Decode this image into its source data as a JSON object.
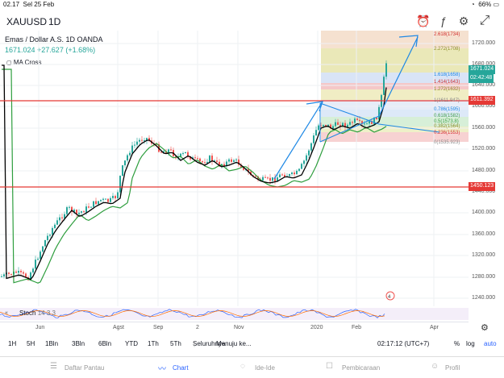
{
  "status": {
    "time": "02.17",
    "date": "Sel 25 Feb",
    "battery": "66%"
  },
  "topbar": {
    "symbol": "XAUUSD",
    "interval": "1D"
  },
  "legend": {
    "title": "Emas / Dollar A.S.   1D   OANDA",
    "price_change": "1671.024  +27.627 (+1.68%)",
    "indicator": "MA Cross"
  },
  "price_axis": {
    "ticks": [
      "1720.000",
      "1680.000",
      "1640.000",
      "1600.000",
      "1560.000",
      "1520.000",
      "1480.000",
      "1440.000",
      "1400.000",
      "1360.000",
      "1320.000",
      "1280.000",
      "1240.000"
    ],
    "current_price": "1671.024",
    "countdown": "02:42:48",
    "upper_line": "1611.392",
    "lower_line": "1450.123"
  },
  "fib_levels": [
    {
      "label": "2.618(1734)",
      "color": "#d32f2f"
    },
    {
      "label": "2.272(1708)",
      "color": "#8d8d2a"
    },
    {
      "label": "1.618(1658)",
      "color": "#1e88e5"
    },
    {
      "label": "1.414(1643)",
      "color": "#d32f2f"
    },
    {
      "label": "1.272(1632)",
      "color": "#8d8d2a"
    },
    {
      "label": "1(1611.947)",
      "color": "#888888"
    },
    {
      "label": "0.786(1595)",
      "color": "#1e88e5"
    },
    {
      "label": "0.618(1582)",
      "color": "#43a047"
    },
    {
      "label": "0.5(1573.8)",
      "color": "#43a047"
    },
    {
      "label": "0.382(1564)",
      "color": "#8d8d2a"
    },
    {
      "label": "0.236(1553)",
      "color": "#d32f2f"
    },
    {
      "label": "0(1535.923)",
      "color": "#888888"
    }
  ],
  "stoch": {
    "label": "Stoch",
    "params": "14 3 3"
  },
  "time_axis": [
    "Jun",
    "Agst",
    "Sep",
    "2",
    "Nov",
    "2020",
    "Feb",
    "Apr"
  ],
  "bottombar": {
    "ranges": [
      "1H",
      "5H",
      "1Bln",
      "3Bln",
      "6Bln",
      "YTD",
      "1Th",
      "5Th",
      "Seluruhnya"
    ],
    "goto": "Menuju ke...",
    "clock": "02:17:12 (UTC+7)",
    "percent": "%",
    "log": "log",
    "auto": "auto"
  },
  "tabs": [
    {
      "label": "Daftar Pantau",
      "icon": "watchlist-icon"
    },
    {
      "label": "Chart",
      "icon": "chart-icon"
    },
    {
      "label": "Ide-Ide",
      "icon": "ideas-icon"
    },
    {
      "label": "Pembicaraan",
      "icon": "chat-icon"
    },
    {
      "label": "Profil",
      "icon": "profile-icon"
    }
  ],
  "colors": {
    "up": "#26a69a",
    "down": "#ef5350",
    "accent": "#2962ff",
    "ma_fast": "#000000",
    "ma_slow": "#2e9e3e",
    "hline": "#e53935",
    "trend": "#1e88e5"
  }
}
